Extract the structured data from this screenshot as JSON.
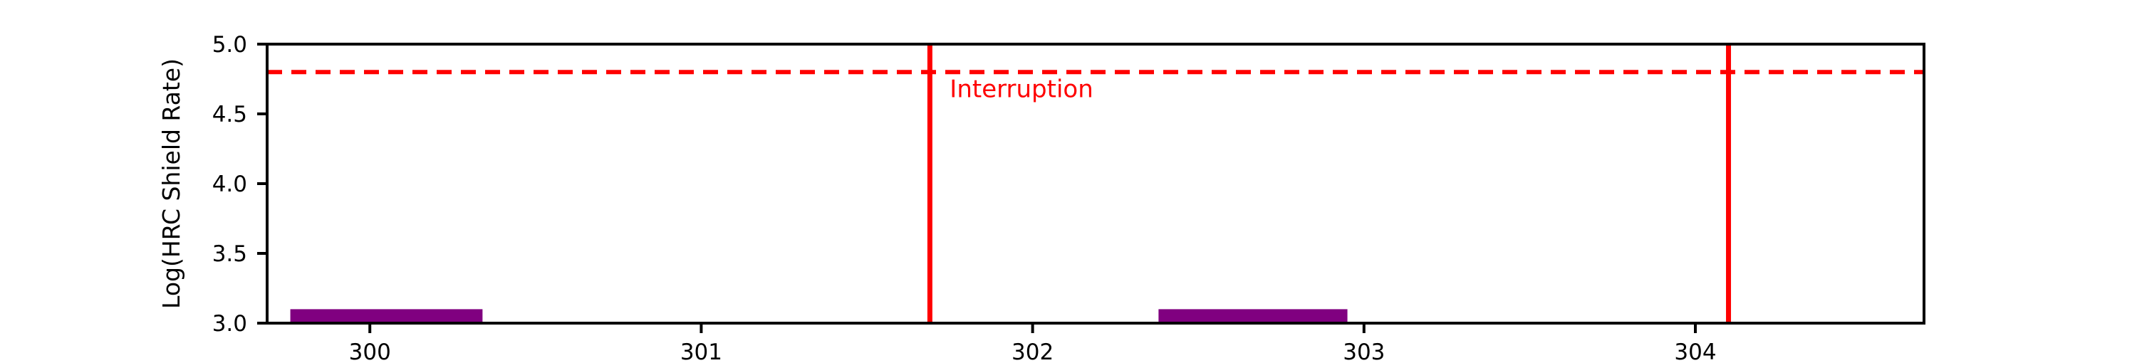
{
  "chart_data": {
    "type": "bar",
    "title": "",
    "xlabel": "",
    "ylabel": "Log(HRC Shield Rate)",
    "xlim": [
      299.69,
      304.69
    ],
    "ylim": [
      3.0,
      5.0
    ],
    "grid": false,
    "legend": null,
    "background_color": "#ffffff",
    "axis_color": "#000000",
    "x_ticks": [
      {
        "value": 300,
        "label": "300"
      },
      {
        "value": 301,
        "label": "301"
      },
      {
        "value": 302,
        "label": "302"
      },
      {
        "value": 303,
        "label": "303"
      },
      {
        "value": 304,
        "label": "304"
      }
    ],
    "y_ticks": [
      {
        "value": 3.0,
        "label": "3.0"
      },
      {
        "value": 3.5,
        "label": "3.5"
      },
      {
        "value": 4.0,
        "label": "4.0"
      },
      {
        "value": 4.5,
        "label": "4.5"
      },
      {
        "value": 5.0,
        "label": "5.0"
      }
    ],
    "bars": [
      {
        "x_start": 299.76,
        "x_end": 300.34,
        "y_base": 3.0,
        "y_top": 3.1,
        "color": "#800080"
      },
      {
        "x_start": 302.38,
        "x_end": 302.95,
        "y_base": 3.0,
        "y_top": 3.1,
        "color": "#800080"
      }
    ],
    "vlines": [
      {
        "x": 301.69,
        "color": "#ff0000",
        "style": "solid"
      },
      {
        "x": 304.1,
        "color": "#ff0000",
        "style": "solid"
      }
    ],
    "hlines": [
      {
        "y": 4.8,
        "color": "#ff0000",
        "style": "dashed"
      }
    ],
    "annotations": [
      {
        "text": "Interruption",
        "x": 301.75,
        "y": 4.62,
        "color": "#ff0000"
      }
    ]
  }
}
